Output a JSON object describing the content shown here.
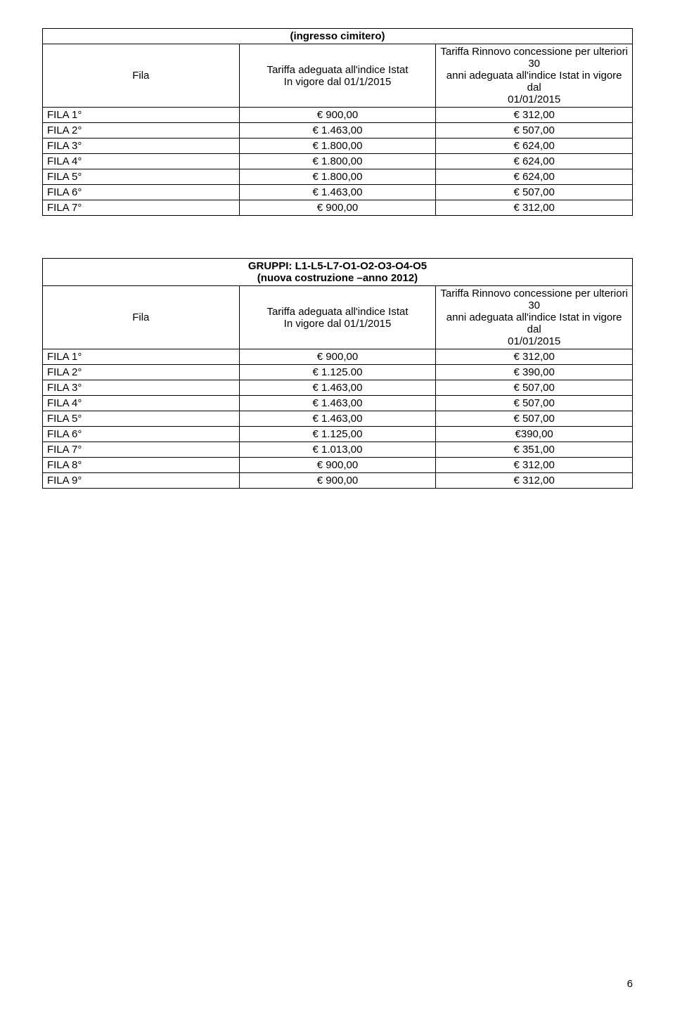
{
  "table1": {
    "title": "(ingresso cimitero)",
    "header": {
      "fila": "Fila",
      "col2_line1": "Tariffa adeguata all'indice Istat",
      "col2_line2": "In vigore dal 01/1/2015",
      "col3_line1": "Tariffa Rinnovo concessione per ulteriori 30",
      "col3_line2": "anni adeguata all'indice Istat in vigore dal",
      "col3_line3": "01/01/2015"
    },
    "rows": [
      {
        "fila": "FILA 1°",
        "c2": "€ 900,00",
        "c3": "€ 312,00"
      },
      {
        "fila": "FILA 2°",
        "c2": "€ 1.463,00",
        "c3": "€ 507,00"
      },
      {
        "fila": "FILA 3°",
        "c2": "€ 1.800,00",
        "c3": "€ 624,00"
      },
      {
        "fila": "FILA 4°",
        "c2": "€ 1.800,00",
        "c3": "€ 624,00"
      },
      {
        "fila": "FILA 5°",
        "c2": "€ 1.800,00",
        "c3": "€ 624,00"
      },
      {
        "fila": "FILA 6°",
        "c2": "€ 1.463,00",
        "c3": "€ 507,00"
      },
      {
        "fila": "FILA 7°",
        "c2": "€ 900,00",
        "c3": "€ 312,00"
      }
    ]
  },
  "table2": {
    "title_line1": "GRUPPI: L1-L5-L7-O1-O2-O3-O4-O5",
    "title_line2": "(nuova costruzione –anno 2012)",
    "header": {
      "fila": "Fila",
      "col2_line1": "Tariffa adeguata all'indice Istat",
      "col2_line2": "In vigore dal 01/1/2015",
      "col3_line1": "Tariffa Rinnovo concessione per ulteriori 30",
      "col3_line2": "anni adeguata all'indice Istat in vigore dal",
      "col3_line3": "01/01/2015"
    },
    "rows": [
      {
        "fila": "FILA 1°",
        "c2": "€ 900,00",
        "c3": "€ 312,00"
      },
      {
        "fila": "FILA 2°",
        "c2": "€ 1.125.00",
        "c3": "€ 390,00"
      },
      {
        "fila": "FILA 3°",
        "c2": "€ 1.463,00",
        "c3": "€ 507,00"
      },
      {
        "fila": "FILA 4°",
        "c2": "€ 1.463,00",
        "c3": "€ 507,00"
      },
      {
        "fila": "FILA 5°",
        "c2": "€ 1.463,00",
        "c3": "€ 507,00"
      },
      {
        "fila": "FILA 6°",
        "c2": "€ 1.125,00",
        "c3": "€390,00"
      },
      {
        "fila": "FILA 7°",
        "c2": "€ 1.013,00",
        "c3": "€ 351,00"
      },
      {
        "fila": "FILA 8°",
        "c2": "€ 900,00",
        "c3": "€ 312,00"
      },
      {
        "fila": "FILA 9°",
        "c2": "€ 900,00",
        "c3": "€ 312,00"
      }
    ]
  },
  "page_number": "6"
}
